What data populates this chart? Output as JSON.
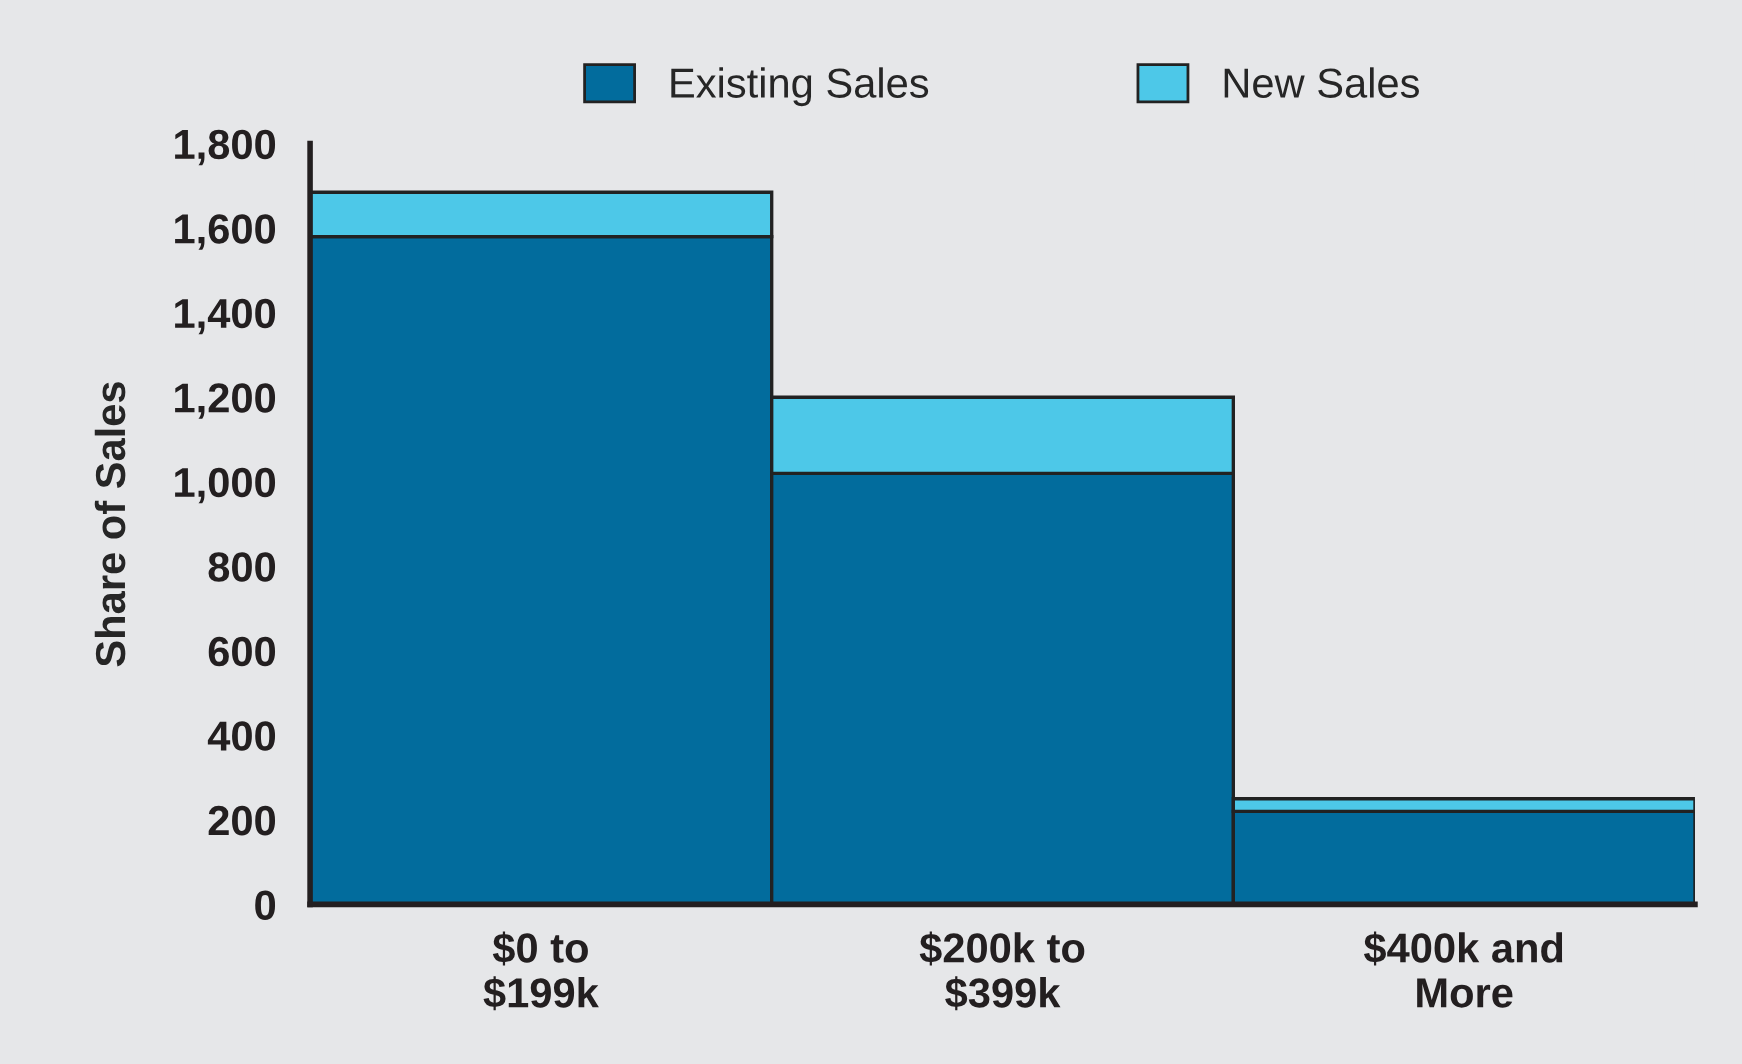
{
  "chart_data": {
    "type": "bar",
    "stacked": true,
    "ylabel": "Share of Sales",
    "categories": [
      "$0 to\n$199k",
      "$200k to\n$399k",
      "$400k and\nMore"
    ],
    "series": [
      {
        "name": "Existing Sales",
        "color": "#026c9d",
        "values": [
          1580,
          1020,
          220
        ]
      },
      {
        "name": "New Sales",
        "color": "#4dc8e8",
        "values": [
          105,
          180,
          30
        ]
      }
    ],
    "ylim": [
      0,
      1800
    ],
    "yticks": [
      {
        "value": 0,
        "label": "0"
      },
      {
        "value": 200,
        "label": "200"
      },
      {
        "value": 400,
        "label": "400"
      },
      {
        "value": 600,
        "label": "600"
      },
      {
        "value": 800,
        "label": "800"
      },
      {
        "value": 1000,
        "label": "1,000"
      },
      {
        "value": 1200,
        "label": "1,200"
      },
      {
        "value": 1400,
        "label": "1,400"
      },
      {
        "value": 1600,
        "label": "1,600"
      },
      {
        "value": 1800,
        "label": "1,800"
      }
    ],
    "grid": false,
    "legend": "top"
  }
}
